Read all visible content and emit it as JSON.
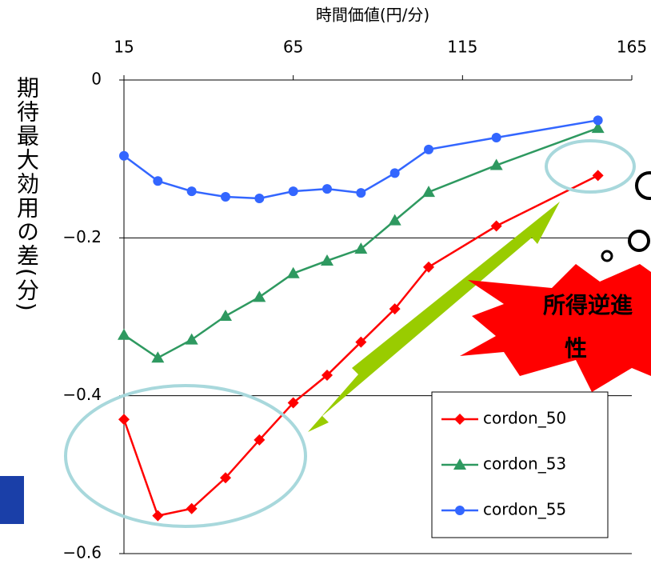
{
  "chart_data": {
    "type": "line",
    "x_label": "時間価値(円/分)",
    "y_label": "期待最大効用の差(分)",
    "annotation": [
      "所得逆進",
      "性"
    ],
    "xlim": [
      15,
      165
    ],
    "xticks": [
      15,
      65,
      115,
      165
    ],
    "ylim": [
      -0.6,
      0
    ],
    "yticks": [
      {
        "value": -0.6,
        "label": "−0.6"
      },
      {
        "value": -0.4,
        "label": "−0.4"
      },
      {
        "value": -0.2,
        "label": "−0.2"
      },
      0
    ],
    "grid": true,
    "legend": "lower right",
    "series": [
      {
        "name": "cordon_50",
        "color": "#ff0000",
        "marker": "diamond",
        "x": [
          15,
          25,
          35,
          45,
          55,
          65,
          75,
          85,
          95,
          105,
          125,
          155
        ],
        "values": [
          -0.43,
          -0.552,
          -0.543,
          -0.504,
          -0.456,
          -0.409,
          -0.374,
          -0.332,
          -0.29,
          -0.237,
          -0.185,
          -0.121
        ]
      },
      {
        "name": "cordon_53",
        "color": "#2e9960",
        "marker": "triangle",
        "x": [
          15,
          25,
          35,
          45,
          55,
          65,
          75,
          85,
          95,
          105,
          125,
          155
        ],
        "values": [
          -0.323,
          -0.352,
          -0.329,
          -0.299,
          -0.275,
          -0.245,
          -0.229,
          -0.214,
          -0.178,
          -0.142,
          -0.108,
          -0.061
        ]
      },
      {
        "name": "cordon_55",
        "color": "#3366ff",
        "marker": "circle",
        "x": [
          15,
          25,
          35,
          45,
          55,
          65,
          75,
          85,
          95,
          105,
          125,
          155
        ],
        "values": [
          -0.096,
          -0.128,
          -0.141,
          -0.148,
          -0.15,
          -0.141,
          -0.138,
          -0.143,
          -0.118,
          -0.088,
          -0.073,
          -0.051
        ]
      }
    ]
  }
}
